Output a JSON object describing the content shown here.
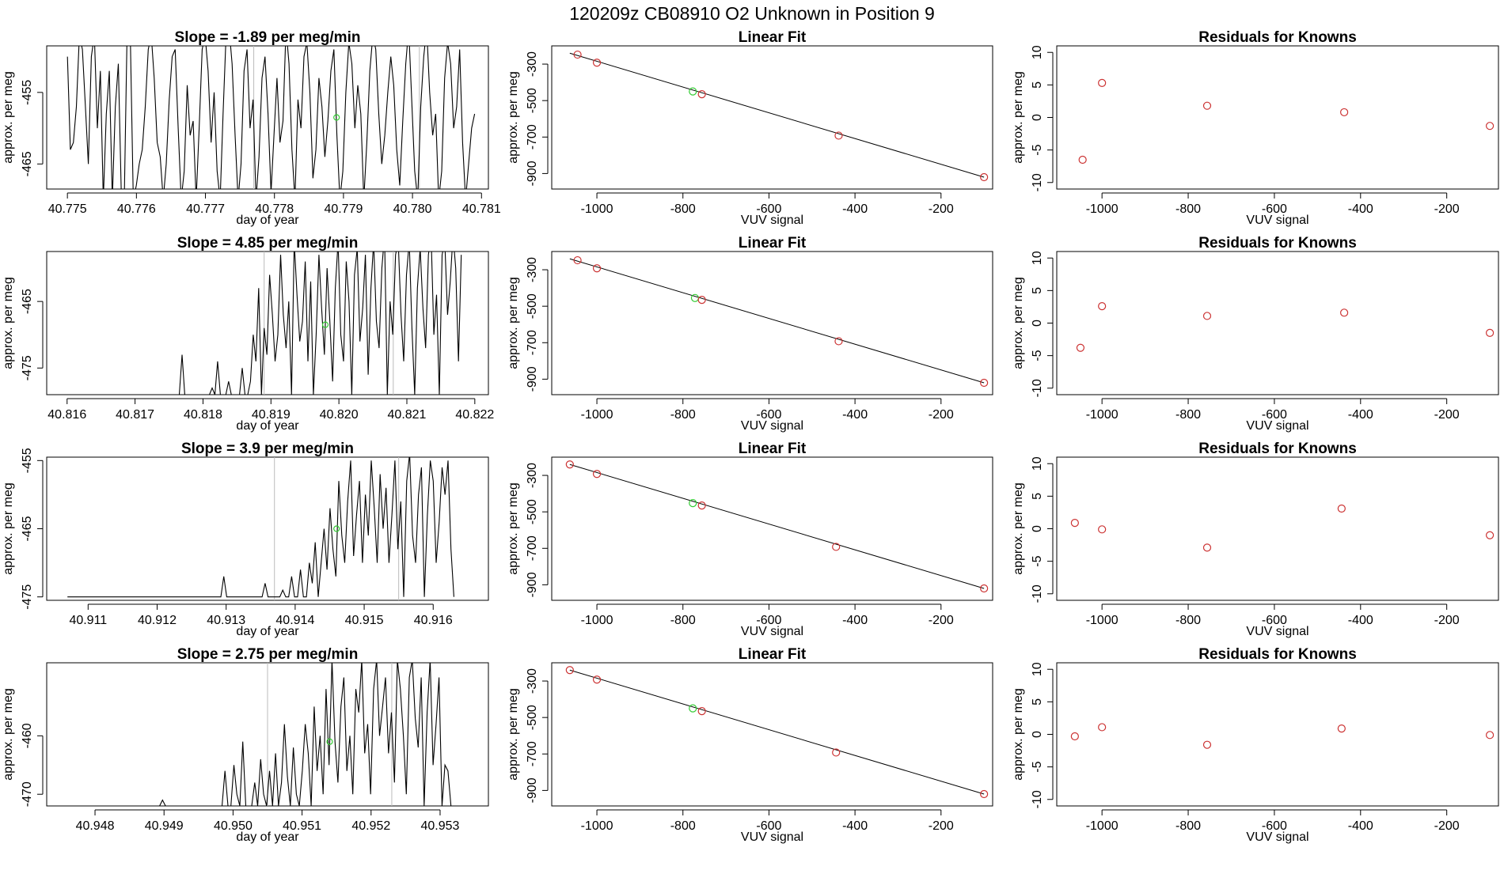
{
  "figure": {
    "title": "120209z      CB08910    O2 Unknown in Position  9"
  },
  "colors": {
    "trace": "#000000",
    "known_points": "#cc3333",
    "unknown_point": "#33cc33",
    "marker_lines": "#bbbbbb",
    "fit_line": "#000000"
  },
  "chart_data": [
    {
      "id": "trace-1",
      "type": "line",
      "title": "Slope =  -1.89  per meg/min",
      "xlabel": "day of year",
      "ylabel": "approx. per meg",
      "xlim": [
        40.7747,
        40.7811
      ],
      "ylim": [
        -468.5,
        -448.5
      ],
      "xticks": [
        "40.775",
        "40.776",
        "40.777",
        "40.778",
        "40.779",
        "40.780",
        "40.781"
      ],
      "yticks": [
        "-455",
        "-465"
      ],
      "x_start": 40.775,
      "x_end": 40.7809,
      "markers": [
        40.7777,
        40.7801
      ],
      "unknown_point": {
        "x": 40.7789,
        "y": -458.5
      },
      "values": [
        -450,
        -463,
        -462,
        -457,
        -447,
        -449,
        -457,
        -465,
        -450,
        -447,
        -460,
        -452,
        -470,
        -458,
        -452,
        -470,
        -457,
        -451,
        -469,
        -470,
        -445,
        -447,
        -470,
        -468,
        -465,
        -463,
        -457,
        -449,
        -447,
        -453,
        -462,
        -464,
        -470,
        -465,
        -456,
        -450,
        -449,
        -460,
        -470,
        -466,
        -454,
        -461,
        -459,
        -470,
        -460,
        -449,
        -447,
        -452,
        -462,
        -455,
        -466,
        -470,
        -458,
        -447,
        -446,
        -451,
        -461,
        -470,
        -465,
        -452,
        -449,
        -460,
        -456,
        -470,
        -464,
        -453,
        -450,
        -458,
        -469,
        -461,
        -453,
        -462,
        -459,
        -446,
        -451,
        -463,
        -470,
        -456,
        -460,
        -450,
        -448,
        -455,
        -467,
        -463,
        -453,
        -457,
        -464,
        -459,
        -452,
        -449,
        -461,
        -470,
        -466,
        -455,
        -448,
        -451,
        -460,
        -454,
        -458,
        -470,
        -462,
        -452,
        -447,
        -449,
        -458,
        -465,
        -461,
        -455,
        -450,
        -454,
        -463,
        -468,
        -459,
        -451,
        -446,
        -456,
        -466,
        -470,
        -457,
        -450,
        -446,
        -455,
        -461,
        -458,
        -470,
        -466,
        -453,
        -448,
        -451,
        -460,
        -457,
        -449,
        -462,
        -470,
        -465,
        -460,
        -458
      ]
    },
    {
      "id": "fit-1",
      "type": "scatter",
      "title": "Linear Fit",
      "xlabel": "VUV signal",
      "ylabel": "approx. per meg",
      "xlim": [
        -1105,
        -80
      ],
      "ylim": [
        -985,
        -200
      ],
      "xticks": [
        "-1000",
        "-800",
        "-600",
        "-400",
        "-200"
      ],
      "yticks": [
        "-300",
        "-500",
        "-700",
        "-900"
      ],
      "fit_line": {
        "x": [
          -1063,
          -100
        ],
        "y": [
          -240,
          -920
        ]
      },
      "knowns": [
        {
          "x": -1045,
          "y": -248
        },
        {
          "x": -1000,
          "y": -292
        },
        {
          "x": -756,
          "y": -465
        },
        {
          "x": -438,
          "y": -692
        },
        {
          "x": -100,
          "y": -920
        }
      ],
      "unknown": {
        "x": -777,
        "y": -450
      }
    },
    {
      "id": "resid-1",
      "type": "scatter",
      "title": "Residuals for Knowns",
      "xlabel": "VUV signal",
      "ylabel": "approx. per meg",
      "xlim": [
        -1105,
        -80
      ],
      "ylim": [
        -11,
        11
      ],
      "xticks": [
        "-1000",
        "-800",
        "-600",
        "-400",
        "-200"
      ],
      "yticks": [
        "10",
        "5",
        "0",
        "-5",
        "-10"
      ],
      "points": [
        {
          "x": -1045,
          "y": -6.5
        },
        {
          "x": -1000,
          "y": 5.3
        },
        {
          "x": -756,
          "y": 1.8
        },
        {
          "x": -438,
          "y": 0.8
        },
        {
          "x": -100,
          "y": -1.3
        }
      ]
    },
    {
      "id": "trace-2",
      "type": "line",
      "title": "Slope =  4.85  per meg/min",
      "xlabel": "day of year",
      "ylabel": "approx. per meg",
      "xlim": [
        40.8157,
        40.8222
      ],
      "ylim": [
        -479,
        -457.5
      ],
      "xticks": [
        "40.816",
        "40.817",
        "40.818",
        "40.819",
        "40.820",
        "40.821",
        "40.822"
      ],
      "yticks": [
        "-465",
        "-475"
      ],
      "x_start": 40.816,
      "x_end": 40.8218,
      "markers": [
        40.8189,
        40.8208
      ],
      "unknown_point": {
        "x": 40.8198,
        "y": -468.5
      },
      "values": [
        -479,
        -479,
        -479,
        -479,
        -479,
        -479,
        -479,
        -479,
        -479,
        -479,
        -479,
        -479,
        -479,
        -479,
        -479,
        -479,
        -479,
        -479,
        -479,
        -479,
        -479,
        -479,
        -479,
        -479,
        -479,
        -479,
        -479,
        -479,
        -479,
        -479,
        -479,
        -479,
        -479,
        -479,
        -479,
        -479,
        -479,
        -479,
        -479,
        -479,
        -479,
        -479,
        -473,
        -479,
        -479,
        -479,
        -479,
        -479,
        -479,
        -479,
        -479,
        -479,
        -479,
        -478,
        -479,
        -474,
        -479,
        -479,
        -479,
        -477,
        -479,
        -479,
        -479,
        -479,
        -475,
        -479,
        -479,
        -477,
        -470,
        -474,
        -463,
        -479,
        -469,
        -473,
        -461,
        -467,
        -474,
        -470,
        -458,
        -467,
        -472,
        -465,
        -479,
        -456,
        -464,
        -471,
        -468,
        -459,
        -474,
        -462,
        -479,
        -470,
        -458,
        -466,
        -473,
        -460,
        -468,
        -477,
        -463,
        -456,
        -470,
        -474,
        -459,
        -465,
        -479,
        -461,
        -457,
        -471,
        -466,
        -458,
        -476,
        -463,
        -456,
        -468,
        -472,
        -460,
        -455,
        -479,
        -465,
        -470,
        -458,
        -456,
        -467,
        -474,
        -461,
        -456,
        -469,
        -479,
        -463,
        -457,
        -466,
        -472,
        -458,
        -455,
        -470,
        -464,
        -479,
        -458,
        -456,
        -467,
        -462,
        -455,
        -460,
        -474,
        -458
      ]
    },
    {
      "id": "fit-2",
      "type": "scatter",
      "title": "Linear Fit",
      "xlabel": "VUV signal",
      "ylabel": "approx. per meg",
      "xlim": [
        -1105,
        -80
      ],
      "ylim": [
        -985,
        -200
      ],
      "xticks": [
        "-1000",
        "-800",
        "-600",
        "-400",
        "-200"
      ],
      "yticks": [
        "-300",
        "-500",
        "-700",
        "-900"
      ],
      "fit_line": {
        "x": [
          -1063,
          -100
        ],
        "y": [
          -240,
          -920
        ]
      },
      "knowns": [
        {
          "x": -1045,
          "y": -248
        },
        {
          "x": -1000,
          "y": -292
        },
        {
          "x": -756,
          "y": -465
        },
        {
          "x": -438,
          "y": -692
        },
        {
          "x": -100,
          "y": -920
        }
      ],
      "unknown": {
        "x": -772,
        "y": -455
      }
    },
    {
      "id": "resid-2",
      "type": "scatter",
      "title": "Residuals for Knowns",
      "xlabel": "VUV signal",
      "ylabel": "approx. per meg",
      "xlim": [
        -1105,
        -80
      ],
      "ylim": [
        -11,
        11
      ],
      "xticks": [
        "-1000",
        "-800",
        "-600",
        "-400",
        "-200"
      ],
      "yticks": [
        "10",
        "5",
        "0",
        "-5",
        "-10"
      ],
      "points": [
        {
          "x": -1050,
          "y": -3.8
        },
        {
          "x": -1000,
          "y": 2.6
        },
        {
          "x": -756,
          "y": 1.1
        },
        {
          "x": -438,
          "y": 1.6
        },
        {
          "x": -100,
          "y": -1.5
        }
      ]
    },
    {
      "id": "trace-3",
      "type": "line",
      "title": "Slope =  3.9  per meg/min",
      "xlabel": "day of year",
      "ylabel": "approx. per meg",
      "xlim": [
        40.9104,
        40.9168
      ],
      "ylim": [
        -475.5,
        -454.5
      ],
      "xticks": [
        "40.911",
        "40.912",
        "40.913",
        "40.914",
        "40.915",
        "40.916"
      ],
      "yticks": [
        "-455",
        "-465",
        "-475"
      ],
      "x_start": 40.9107,
      "x_end": 40.9163,
      "markers": [
        40.9137,
        40.9155
      ],
      "unknown_point": {
        "x": 40.9146,
        "y": -465
      },
      "values": [
        -475,
        -475,
        -475,
        -475,
        -475,
        -475,
        -475,
        -475,
        -475,
        -475,
        -475,
        -475,
        -475,
        -475,
        -475,
        -475,
        -475,
        -475,
        -475,
        -475,
        -475,
        -475,
        -475,
        -475,
        -475,
        -475,
        -475,
        -475,
        -475,
        -475,
        -475,
        -475,
        -475,
        -475,
        -475,
        -475,
        -475,
        -475,
        -475,
        -475,
        -475,
        -475,
        -475,
        -475,
        -475,
        -475,
        -475,
        -475,
        -475,
        -475,
        -475,
        -475,
        -475,
        -472,
        -475,
        -475,
        -475,
        -475,
        -475,
        -475,
        -475,
        -475,
        -475,
        -475,
        -475,
        -475,
        -475,
        -473,
        -475,
        -475,
        -475,
        -475,
        -475,
        -474,
        -475,
        -475,
        -472,
        -475,
        -475,
        -471,
        -475,
        -475,
        -470,
        -473,
        -467,
        -475,
        -470,
        -465,
        -471,
        -462,
        -468,
        -472,
        -458,
        -466,
        -470,
        -461,
        -455,
        -469,
        -463,
        -458,
        -470,
        -460,
        -466,
        -455,
        -462,
        -470,
        -457,
        -465,
        -459,
        -470,
        -463,
        -455,
        -468,
        -461,
        -475,
        -458,
        -454,
        -466,
        -470,
        -460,
        -456,
        -475,
        -463,
        -455,
        -458,
        -470,
        -464,
        -456,
        -460,
        -455,
        -468,
        -475
      ]
    },
    {
      "id": "fit-3",
      "type": "scatter",
      "title": "Linear Fit",
      "xlabel": "VUV signal",
      "ylabel": "approx. per meg",
      "xlim": [
        -1105,
        -80
      ],
      "ylim": [
        -985,
        -200
      ],
      "xticks": [
        "-1000",
        "-800",
        "-600",
        "-400",
        "-200"
      ],
      "yticks": [
        "-300",
        "-500",
        "-700",
        "-900"
      ],
      "fit_line": {
        "x": [
          -1063,
          -100
        ],
        "y": [
          -240,
          -920
        ]
      },
      "knowns": [
        {
          "x": -1063,
          "y": -240
        },
        {
          "x": -1000,
          "y": -292
        },
        {
          "x": -756,
          "y": -465
        },
        {
          "x": -444,
          "y": -692
        },
        {
          "x": -100,
          "y": -920
        }
      ],
      "unknown": {
        "x": -777,
        "y": -452
      }
    },
    {
      "id": "resid-3",
      "type": "scatter",
      "title": "Residuals for Knowns",
      "xlabel": "VUV signal",
      "ylabel": "approx. per meg",
      "xlim": [
        -1105,
        -80
      ],
      "ylim": [
        -11,
        11
      ],
      "xticks": [
        "-1000",
        "-800",
        "-600",
        "-400",
        "-200"
      ],
      "yticks": [
        "10",
        "5",
        "0",
        "-5",
        "-10"
      ],
      "points": [
        {
          "x": -1063,
          "y": 0.9
        },
        {
          "x": -1000,
          "y": -0.1
        },
        {
          "x": -756,
          "y": -2.9
        },
        {
          "x": -444,
          "y": 3.1
        },
        {
          "x": -100,
          "y": -1.0
        }
      ]
    },
    {
      "id": "trace-4",
      "type": "line",
      "title": "Slope =  2.75  per meg/min",
      "xlabel": "day of year",
      "ylabel": "approx. per meg",
      "xlim": [
        40.9473,
        40.9537
      ],
      "ylim": [
        -472,
        -447.5
      ],
      "xticks": [
        "40.948",
        "40.949",
        "40.950",
        "40.951",
        "40.952",
        "40.953"
      ],
      "yticks": [
        "-460",
        "-470"
      ],
      "x_start": 40.9476,
      "x_end": 40.9532,
      "markers": [
        40.9505,
        40.9523
      ],
      "unknown_point": {
        "x": 40.9514,
        "y": -461
      },
      "values": [
        -472,
        -472,
        -472,
        -472,
        -472,
        -472,
        -472,
        -472,
        -472,
        -472,
        -472,
        -472,
        -472,
        -472,
        -472,
        -472,
        -472,
        -472,
        -472,
        -472,
        -472,
        -472,
        -472,
        -472,
        -472,
        -472,
        -472,
        -472,
        -472,
        -472,
        -472,
        -472,
        -471,
        -472,
        -472,
        -472,
        -472,
        -472,
        -472,
        -472,
        -472,
        -472,
        -472,
        -472,
        -472,
        -472,
        -472,
        -472,
        -472,
        -472,
        -472,
        -472,
        -472,
        -466,
        -472,
        -472,
        -465,
        -470,
        -472,
        -461,
        -472,
        -472,
        -472,
        -468,
        -472,
        -464,
        -470,
        -472,
        -466,
        -472,
        -463,
        -472,
        -468,
        -458,
        -467,
        -472,
        -462,
        -470,
        -472,
        -466,
        -458,
        -463,
        -472,
        -455,
        -466,
        -460,
        -470,
        -452,
        -465,
        -447,
        -461,
        -468,
        -455,
        -450,
        -466,
        -460,
        -470,
        -452,
        -456,
        -447,
        -463,
        -458,
        -470,
        -452,
        -447,
        -460,
        -455,
        -450,
        -463,
        -456,
        -468,
        -447,
        -452,
        -460,
        -470,
        -450,
        -447,
        -457,
        -462,
        -450,
        -472,
        -456,
        -447,
        -465,
        -458,
        -450,
        -472,
        -465,
        -466,
        -472,
        -472
      ]
    },
    {
      "id": "fit-4",
      "type": "scatter",
      "title": "Linear Fit",
      "xlabel": "VUV signal",
      "ylabel": "approx. per meg",
      "xlim": [
        -1105,
        -80
      ],
      "ylim": [
        -985,
        -200
      ],
      "xticks": [
        "-1000",
        "-800",
        "-600",
        "-400",
        "-200"
      ],
      "yticks": [
        "-300",
        "-500",
        "-700",
        "-900"
      ],
      "fit_line": {
        "x": [
          -1063,
          -100
        ],
        "y": [
          -240,
          -920
        ]
      },
      "knowns": [
        {
          "x": -1063,
          "y": -240
        },
        {
          "x": -1000,
          "y": -292
        },
        {
          "x": -756,
          "y": -465
        },
        {
          "x": -444,
          "y": -692
        },
        {
          "x": -100,
          "y": -920
        }
      ],
      "unknown": {
        "x": -777,
        "y": -450
      }
    },
    {
      "id": "resid-4",
      "type": "scatter",
      "title": "Residuals for Knowns",
      "xlabel": "VUV signal",
      "ylabel": "approx. per meg",
      "xlim": [
        -1105,
        -80
      ],
      "ylim": [
        -11,
        11
      ],
      "xticks": [
        "-1000",
        "-800",
        "-600",
        "-400",
        "-200"
      ],
      "yticks": [
        "10",
        "5",
        "0",
        "-5",
        "-10"
      ],
      "points": [
        {
          "x": -1063,
          "y": -0.3
        },
        {
          "x": -1000,
          "y": 1.1
        },
        {
          "x": -756,
          "y": -1.6
        },
        {
          "x": -444,
          "y": 0.9
        },
        {
          "x": -100,
          "y": -0.1
        }
      ]
    }
  ]
}
